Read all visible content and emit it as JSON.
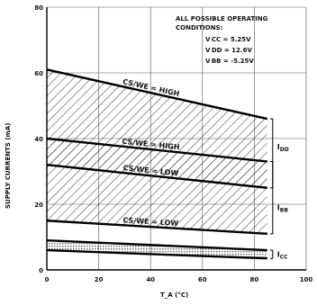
{
  "chart_data": {
    "type": "line",
    "xlabel": "T_A (°C)",
    "ylabel": "SUPPLY CURRENTS (mA)",
    "xlim": [
      0,
      100
    ],
    "ylim": [
      0,
      80
    ],
    "x_ticks": [
      "0",
      "20",
      "40",
      "60",
      "80",
      "100"
    ],
    "y_ticks": [
      "0",
      "20",
      "40",
      "60",
      "80"
    ],
    "grid": true,
    "conditions": {
      "title": "ALL POSSIBLE OPERATING",
      "title2": "CONDITIONS:",
      "vcc": "V CC = 5.25V",
      "vdd": "V DD = 12.6V",
      "vbb": "V BB = -5.25V"
    },
    "bands": [
      {
        "name": "IDD",
        "label": "I",
        "sub": "DD",
        "upper": {
          "label": "CS/WE = HIGH",
          "x": [
            0,
            85
          ],
          "y": [
            61,
            46
          ]
        },
        "lower": {
          "label": "CS/WE = LOW",
          "x": [
            0,
            85
          ],
          "y": [
            32,
            25
          ]
        }
      },
      {
        "name": "IBB",
        "label": "I",
        "sub": "BB",
        "upper": {
          "label": "CS/WE = HIGH",
          "x": [
            0,
            85
          ],
          "y": [
            40,
            33
          ]
        },
        "lower": {
          "label": "CS/WE = LOW",
          "x": [
            0,
            85
          ],
          "y": [
            15,
            11
          ]
        }
      },
      {
        "name": "ICC",
        "label": "I",
        "sub": "CC",
        "upper": {
          "label": "",
          "x": [
            0,
            85
          ],
          "y": [
            9,
            6
          ]
        },
        "lower": {
          "label": "",
          "x": [
            0,
            85
          ],
          "y": [
            6,
            3.5
          ]
        }
      }
    ],
    "curve_labels": [
      "CS/WE = HIGH",
      "CS/WE = HIGH",
      "CS/WE = LOW",
      "CS/WE = LOW"
    ]
  }
}
